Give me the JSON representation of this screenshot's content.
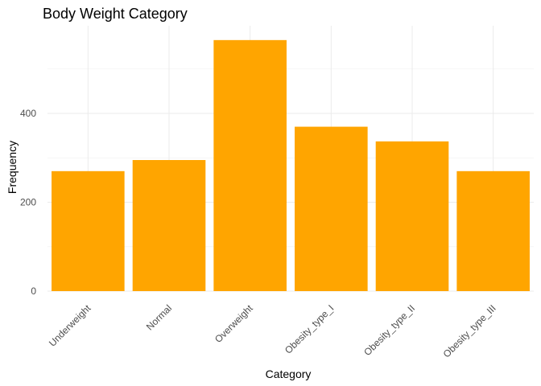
{
  "chart_data": {
    "type": "bar",
    "title": "Body Weight Category",
    "xlabel": "Category",
    "ylabel": "Frequency",
    "categories": [
      "Underweight",
      "Normal",
      "Overweight",
      "Obesity_type_I",
      "Obesity_type_II",
      "Obesity_type_III"
    ],
    "values": [
      270,
      295,
      565,
      370,
      337,
      270
    ],
    "ylim": [
      0,
      600
    ],
    "yticks": [
      0,
      200,
      400
    ],
    "ytick_labels": [
      "0",
      "200",
      "400"
    ],
    "bar_color": "#FFA500",
    "grid": true,
    "legend": "none"
  }
}
